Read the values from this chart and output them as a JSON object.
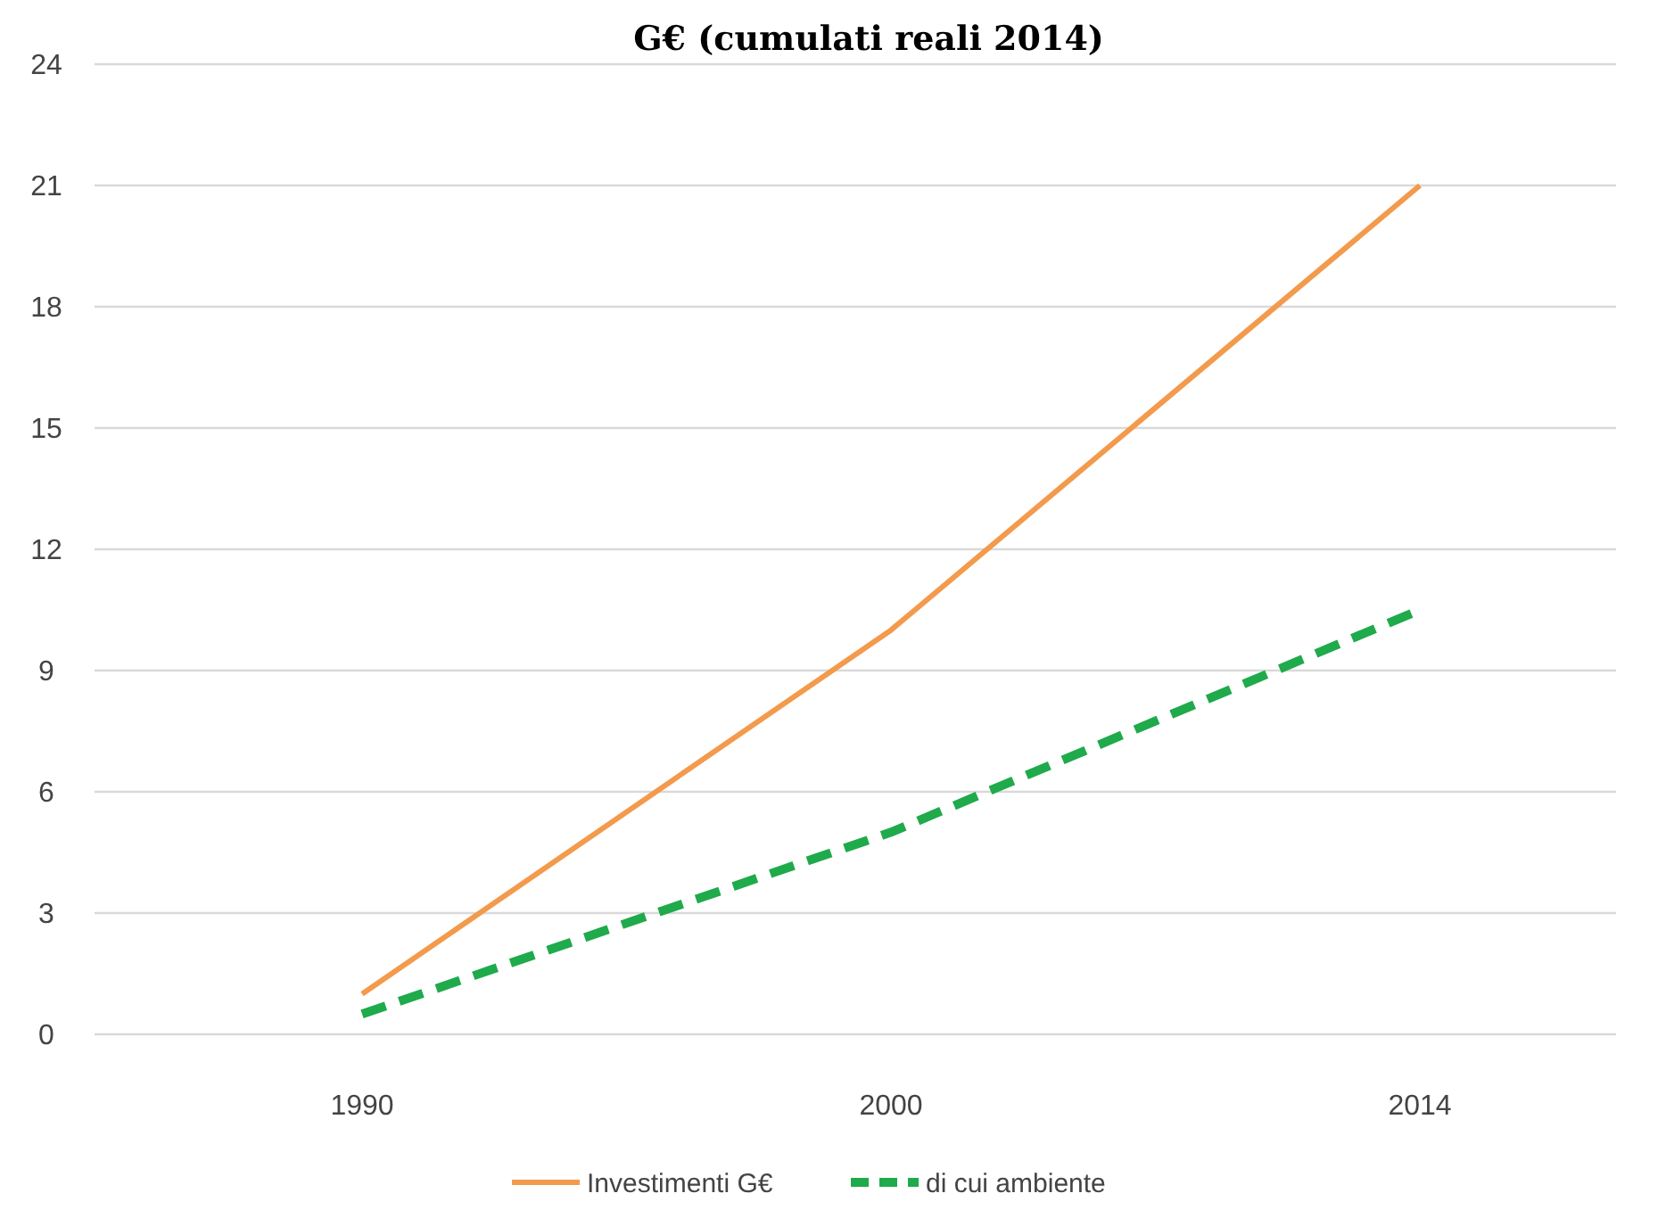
{
  "chart_data": {
    "type": "line",
    "title": "G€ (cumulati reali 2014)",
    "categories": [
      "1990",
      "2000",
      "2014"
    ],
    "series": [
      {
        "name": "Investimenti G€",
        "color": "#f39a4c",
        "values": [
          1,
          10,
          21
        ],
        "line_style": "solid"
      },
      {
        "name": "di cui ambiente",
        "color": "#1faa4b",
        "values": [
          0.5,
          5,
          10.5
        ],
        "line_style": "dashed"
      }
    ],
    "ylim": [
      0,
      24
    ],
    "yticks": [
      0,
      3,
      6,
      9,
      12,
      15,
      18,
      21,
      24
    ],
    "grid": "y",
    "legend": "bottom",
    "marker": "none"
  }
}
